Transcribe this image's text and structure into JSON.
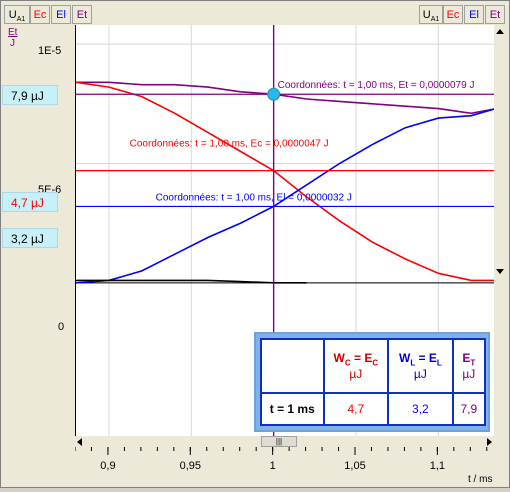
{
  "tabs_left": [
    "U",
    "Ec",
    "El",
    "Et"
  ],
  "tabs_left_sub": "A1",
  "tabs_right": [
    "U",
    "Ec",
    "El",
    "Et"
  ],
  "tabs_right_sub": "A1",
  "axis_unit_top": "Et",
  "axis_unit_bottom": "J",
  "y_tick_top": "1E-5",
  "y_tick_mid": "5E-6",
  "y_tick_zero": "0",
  "badges": {
    "et": "7,9  µJ",
    "ec": "4,7  µJ",
    "el": "3,2  µJ"
  },
  "annotations": {
    "et": "Coordonnées: t = 1,00 ms,  Et = 0,0000079 J",
    "ec": "Coordonnées: t = 1,00 ms,  Ec = 0,0000047 J",
    "el": "Coordonnées: t = 1,00 ms,  El = 0,0000032 J"
  },
  "x_axis_label": "t / ms",
  "x_ticks": [
    "0,9",
    "0,95",
    "1",
    "1,05",
    "1,1"
  ],
  "scroll_grip": "|||",
  "table": {
    "h_wc": "W",
    "h_wc_sub": "C",
    "h_wc_eq": " = E",
    "h_wc_sub2": "C",
    "h_wc_unit": "µJ",
    "h_wl": "W",
    "h_wl_sub": "L",
    "h_wl_eq": " = E",
    "h_wl_sub2": "L",
    "h_wl_unit": "µJ",
    "h_et": "E",
    "h_et_sub": "T",
    "h_et_unit": "µJ",
    "row_label": "t = 1 ms",
    "v_ec": "4,7",
    "v_el": "3,2",
    "v_et": "7,9"
  },
  "colors": {
    "et": "#800080",
    "ec": "#ff0000",
    "el": "#0000ff",
    "cursor": "#800080",
    "marker": "#29b6e8"
  },
  "chart_data": {
    "type": "line",
    "x_unit": "ms",
    "xlim": [
      0.88,
      1.135
    ],
    "ylim": [
      -6.5e-06,
      1.08e-05
    ],
    "cursor_x": 1.0,
    "series": [
      {
        "name": "Et",
        "x": [
          0.88,
          0.9,
          0.92,
          0.94,
          0.96,
          0.98,
          1.0,
          1.02,
          1.04,
          1.06,
          1.08,
          1.1,
          1.12,
          1.135
        ],
        "values": [
          8.4e-06,
          8.4e-06,
          8.3e-06,
          8.3e-06,
          8.2e-06,
          8e-06,
          7.9e-06,
          7.7e-06,
          7.6e-06,
          7.5e-06,
          7.4e-06,
          7.3e-06,
          7.1e-06,
          7.3e-06
        ]
      },
      {
        "name": "Ec",
        "x": [
          0.88,
          0.9,
          0.92,
          0.94,
          0.96,
          0.98,
          1.0,
          1.02,
          1.04,
          1.06,
          1.08,
          1.1,
          1.12,
          1.135
        ],
        "values": [
          8.4e-06,
          8.2e-06,
          7.8e-06,
          7.1e-06,
          6.3e-06,
          5.5e-06,
          4.7e-06,
          3.6e-06,
          2.6e-06,
          1.7e-06,
          1e-06,
          4e-07,
          1e-07,
          1e-07
        ]
      },
      {
        "name": "El",
        "x": [
          0.88,
          0.9,
          0.92,
          0.94,
          0.96,
          0.98,
          1.0,
          1.02,
          1.04,
          1.06,
          1.08,
          1.1,
          1.12,
          1.135
        ],
        "values": [
          0.0,
          1e-07,
          5e-07,
          1.2e-06,
          1.9e-06,
          2.5e-06,
          3.2e-06,
          4.1e-06,
          5e-06,
          5.8e-06,
          6.5e-06,
          6.9e-06,
          7e-06,
          7.3e-06
        ]
      },
      {
        "name": "U",
        "x": [
          0.88,
          0.9,
          0.92,
          0.94,
          0.96,
          0.98,
          1.0,
          1.02
        ],
        "values": [
          1e-07,
          1e-07,
          1e-07,
          1e-07,
          1e-07,
          5e-08,
          0.0,
          0.0
        ]
      }
    ]
  }
}
